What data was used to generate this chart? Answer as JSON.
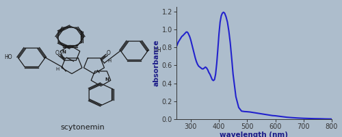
{
  "background_color": "#adbdcc",
  "line_color": "#2222cc",
  "line_width": 1.5,
  "xlabel": "wavelength (nm)",
  "ylabel": "absorbance",
  "xlim": [
    248,
    800
  ],
  "ylim": [
    0.0,
    1.25
  ],
  "yticks": [
    0.0,
    0.2,
    0.4,
    0.6,
    0.8,
    1.0,
    1.2
  ],
  "xticks": [
    300,
    400,
    500,
    600,
    700,
    800
  ],
  "molecule_label": "scytonemin",
  "wavelengths": [
    248,
    252,
    256,
    260,
    264,
    268,
    272,
    275,
    278,
    281,
    284,
    287,
    290,
    293,
    296,
    300,
    304,
    308,
    312,
    316,
    320,
    324,
    328,
    332,
    336,
    340,
    344,
    348,
    352,
    356,
    360,
    364,
    368,
    372,
    376,
    380,
    384,
    388,
    392,
    396,
    400,
    404,
    408,
    412,
    416,
    420,
    425,
    430,
    435,
    440,
    445,
    450,
    460,
    470,
    480,
    490,
    500,
    510,
    520,
    530,
    540,
    550,
    560,
    570,
    580,
    590,
    600,
    620,
    640,
    660,
    680,
    700,
    720,
    740,
    760,
    780,
    800
  ],
  "absorbance": [
    0.8,
    0.83,
    0.86,
    0.88,
    0.9,
    0.92,
    0.93,
    0.94,
    0.95,
    0.96,
    0.97,
    0.97,
    0.96,
    0.94,
    0.92,
    0.88,
    0.83,
    0.78,
    0.73,
    0.68,
    0.64,
    0.61,
    0.59,
    0.58,
    0.57,
    0.56,
    0.56,
    0.57,
    0.58,
    0.57,
    0.55,
    0.52,
    0.5,
    0.47,
    0.44,
    0.43,
    0.44,
    0.5,
    0.62,
    0.78,
    0.95,
    1.08,
    1.15,
    1.18,
    1.19,
    1.18,
    1.14,
    1.08,
    0.98,
    0.85,
    0.68,
    0.5,
    0.25,
    0.13,
    0.09,
    0.085,
    0.083,
    0.08,
    0.075,
    0.07,
    0.065,
    0.06,
    0.055,
    0.05,
    0.045,
    0.04,
    0.038,
    0.03,
    0.022,
    0.017,
    0.013,
    0.01,
    0.008,
    0.006,
    0.005,
    0.003,
    0.002
  ],
  "tick_fontsize": 7,
  "label_fontsize": 7.5,
  "label_color": "#1c1c88",
  "tick_color": "#333333"
}
